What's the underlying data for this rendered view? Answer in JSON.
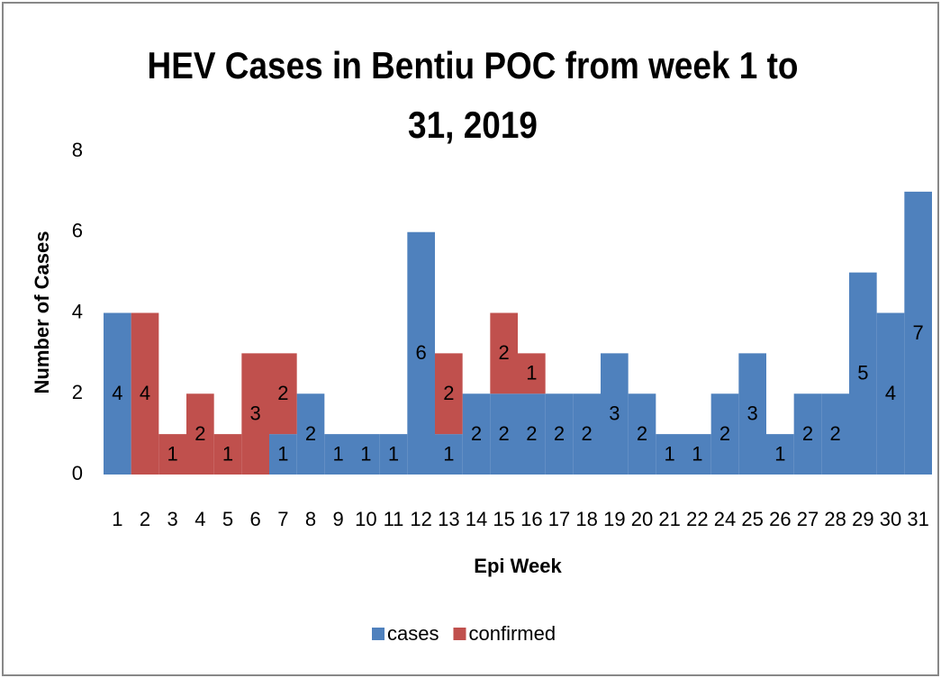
{
  "chart_data": {
    "type": "stacked_bar",
    "title": "HEV Cases in Bentiu POC from week 1 to 31, 2019",
    "x_label": "Epi Week",
    "y_label": "Number of Cases",
    "categories": [
      "1",
      "2",
      "3",
      "4",
      "5",
      "6",
      "7",
      "8",
      "9",
      "10",
      "11",
      "12",
      "13",
      "14",
      "15",
      "16",
      "17",
      "18",
      "19",
      "20",
      "21",
      "22",
      "24",
      "25",
      "26",
      "27",
      "28",
      "29",
      "30",
      "31"
    ],
    "series": [
      {
        "name": "cases",
        "color": "#4f81bd",
        "values": [
          4,
          null,
          null,
          null,
          null,
          null,
          1,
          2,
          1,
          1,
          1,
          6,
          1,
          2,
          2,
          2,
          2,
          2,
          3,
          2,
          1,
          1,
          2,
          3,
          1,
          2,
          2,
          5,
          4,
          7
        ]
      },
      {
        "name": "confirmed",
        "color": "#c0504d",
        "values": [
          null,
          4,
          1,
          2,
          1,
          3,
          2,
          null,
          null,
          null,
          null,
          null,
          2,
          null,
          2,
          1,
          null,
          null,
          null,
          null,
          null,
          null,
          null,
          null,
          null,
          null,
          null,
          null,
          null,
          null
        ]
      }
    ],
    "ylim": [
      0,
      8
    ],
    "yticks": [
      0,
      2,
      4,
      6,
      8
    ],
    "grid": false,
    "legend": "bottom"
  }
}
